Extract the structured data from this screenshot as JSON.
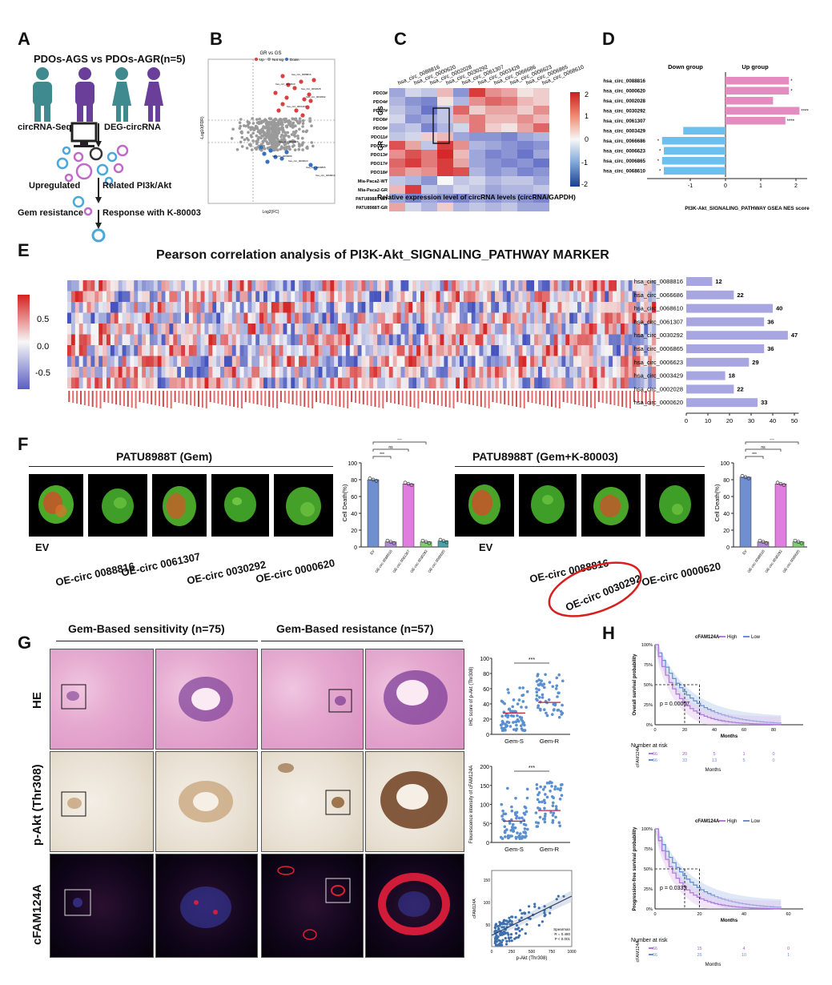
{
  "panels": {
    "A": "A",
    "B": "B",
    "C": "C",
    "D": "D",
    "E": "E",
    "F": "F",
    "G": "G",
    "H": "H"
  },
  "panelA": {
    "title": "PDOs-AGS  vs  PDOs-AGR(n=5)",
    "seq": "circRNA-Seq",
    "deg": "DEG-circRNA",
    "up": "Upregulated",
    "related": "Related PI3k/Akt",
    "gem": "Gem  resistance",
    "response": "Response with K-80003"
  },
  "panelB": {
    "title": "GR vs GS",
    "legend": [
      "Up",
      "Not sig",
      "Down"
    ],
    "xlabel": "Log2(FC)",
    "ylabel": "-Log10(FDR)",
    "labels": [
      "hsa_circ_0088816",
      "hsa_circ_0000620",
      "hsa_circ_0002028",
      "hsa_circ_0030292",
      "hsa_circ_0061307",
      "hsa_circ_0003429",
      "hsa_circ_0066686",
      "hsa_circ_0006623",
      "hsa_circ_0006865",
      "hsa_circ_0068610"
    ]
  },
  "panelC": {
    "cols": [
      "hsa_circ_0088816",
      "hsa_circ_0000620",
      "hsa_circ_0002028",
      "hsa_circ_0030292",
      "hsa_circ_0061307",
      "hsa_circ_0003429",
      "hsa_circ_0066686",
      "hsa_circ_0006623",
      "hsa_circ_0006865",
      "hsa_circ_0068610"
    ],
    "rows": [
      "PDO3#",
      "PDO4#",
      "PDO7#",
      "PDO8#",
      "PDO9#",
      "PDO11#",
      "PDO12#",
      "PDO13#",
      "PDO17#",
      "PDO18#",
      "Mia-Paca2-WT",
      "Mia-Paca2-GR",
      "PATU8988T-WT",
      "PATU8988T-GR"
    ],
    "group_gs": "GS",
    "group_gr": "GR",
    "scale": [
      "2",
      "1",
      "0",
      "-1",
      "-2"
    ],
    "caption": "Relative expression level of circRNA levels (circRNA/GAPDH)"
  },
  "panelD": {
    "down": "Down group",
    "up": "Up group",
    "xlabel": "PI3K-Akt_SIGNALING_PATHWAY GSEA  NES score",
    "ticks": [
      "-1",
      "0",
      "1",
      "2"
    ],
    "sig": [
      "*",
      "*",
      "",
      "****",
      "****",
      "",
      "*",
      "*",
      "*",
      "*"
    ]
  },
  "panelE": {
    "title": "Pearson correlation analysis of PI3K-Akt_SIGNALING_PATHWAY MARKER",
    "scale": [
      "0.5",
      "0.0",
      "-0.5"
    ],
    "bar_ticks": [
      "0",
      "10",
      "20",
      "30",
      "40",
      "50"
    ]
  },
  "panelF": {
    "left_title": "PATU8988T (Gem)",
    "right_title": "PATU8988T (Gem+K-80003)",
    "ev": "EV",
    "left_labels": [
      "OE-circ 0088816",
      "OE-circ 0061307",
      "OE-circ 0030292",
      "OE-circ 0000620"
    ],
    "right_labels": [
      "OE-circ 0088816",
      "OE-circ 0030292",
      "OE-circ 0000620"
    ],
    "ylabel": "Cell Death(%)",
    "ticks": [
      "100",
      "80",
      "60",
      "40",
      "20",
      "0"
    ],
    "left_bar_labels": [
      "EV",
      "OE-circ 0088816",
      "OE-circ 0061307",
      "OE-circ 0030292",
      "OE-circ 0000620"
    ],
    "right_bar_labels": [
      "EV",
      "OE-circ 0088816",
      "OE-circ 0030292",
      "OE-circ 0000620"
    ],
    "sig": [
      "***",
      "ns",
      "***",
      "***"
    ]
  },
  "panelG": {
    "sens": "Gem-Based   sensitivity (n=75)",
    "res": "Gem-Based  resistance (n=57)",
    "rows": [
      "HE",
      "p-Akt (Thr308)",
      "cFAM124A"
    ],
    "plot1_ylabel": "IHC score of p-Akt (Thr308)",
    "plot2_ylabel": "Flourescence intensity of cFAM124A",
    "groups": [
      "Gem-S",
      "Gem-R"
    ],
    "sig": "***",
    "plot1_ticks": [
      "100",
      "80",
      "60",
      "40",
      "20",
      "0"
    ],
    "plot2_ticks": [
      "200",
      "150",
      "100",
      "50",
      "0"
    ],
    "scatter_xlabel": "p-Akt (Thr308)",
    "scatter_ylabel": "cFAM124A",
    "scatter_x_ticks": [
      "0",
      "250",
      "500",
      "750",
      "1000"
    ],
    "scatter_y_ticks": [
      "150",
      "100",
      "50"
    ],
    "stats": [
      "Spearman",
      "R = 0.480",
      "P < 0.001"
    ]
  },
  "panelH": {
    "legend_title": "cFAM124A",
    "legend": [
      "High",
      "Low"
    ],
    "os_ylabel": "Overall survival probability",
    "pfs_ylabel": "Progression-free survival probability",
    "xlabel": "Months",
    "os_p": "p = 0.00067",
    "pfs_p": "p = 0.0333",
    "risk": "Number at risk",
    "risk_axis": "cFAM124A",
    "os_risk_high": [
      "66",
      "20",
      "5",
      "1",
      "0"
    ],
    "os_risk_low": [
      "66",
      "33",
      "13",
      "5",
      "0"
    ],
    "pfs_risk_high": [
      "66",
      "15",
      "4",
      "0"
    ],
    "pfs_risk_low": [
      "66",
      "26",
      "10",
      "1"
    ],
    "os_x_ticks": [
      "0",
      "20",
      "40",
      "60",
      "80"
    ],
    "pfs_x_ticks": [
      "0",
      "20",
      "40",
      "60"
    ],
    "y_ticks": [
      "100%",
      "75%",
      "50%",
      "25%",
      "0%"
    ]
  },
  "chart_data": [
    {
      "type": "bar",
      "title": "Panel D: PI3K-Akt_SIGNALING_PATHWAY GSEA NES score",
      "categories": [
        "hsa_circ_0088816",
        "hsa_circ_0000620",
        "hsa_circ_0002028",
        "hsa_circ_0030292",
        "hsa_circ_0061307",
        "hsa_circ_0003429",
        "hsa_circ_0066686",
        "hsa_circ_0006623",
        "hsa_circ_0006865",
        "hsa_circ_0068610"
      ],
      "values": [
        1.8,
        1.8,
        1.35,
        2.1,
        1.7,
        -1.2,
        -1.8,
        -1.75,
        -1.8,
        -1.75
      ],
      "xlim": [
        -2,
        2.2
      ]
    },
    {
      "type": "bar",
      "title": "Panel E: correlated markers count",
      "categories": [
        "hsa_circ_0088816",
        "hsa_circ_0066686",
        "hsa_circ_0068610",
        "hsa_circ_0061307",
        "hsa_circ_0030292",
        "hsa_circ_0006865",
        "hsa_circ_0006623",
        "hsa_circ_0003429",
        "hsa_circ_0002028",
        "hsa_circ_0000620"
      ],
      "values": [
        12,
        22,
        40,
        36,
        47,
        36,
        29,
        18,
        22,
        33
      ],
      "xlim": [
        0,
        50
      ]
    },
    {
      "type": "bar",
      "title": "Panel F (Gem): Cell Death(%)",
      "categories": [
        "EV",
        "OE-circ 0088816",
        "OE-circ 0061307",
        "OE-circ 0030292",
        "OE-circ 0000620"
      ],
      "values": [
        80,
        6,
        75,
        6,
        7
      ],
      "colors": [
        "#6f8fd0",
        "#b38ad8",
        "#e07ee0",
        "#7ed06a",
        "#4aa3a8"
      ],
      "ylim": [
        0,
        100
      ]
    },
    {
      "type": "bar",
      "title": "Panel F (Gem+K-80003): Cell Death(%)",
      "categories": [
        "EV",
        "OE-circ 0088816",
        "OE-circ 0030292",
        "OE-circ 0000620"
      ],
      "values": [
        83,
        6,
        75,
        6
      ],
      "colors": [
        "#6f8fd0",
        "#b38ad8",
        "#e07ee0",
        "#7ed06a"
      ],
      "ylim": [
        0,
        100
      ]
    }
  ]
}
